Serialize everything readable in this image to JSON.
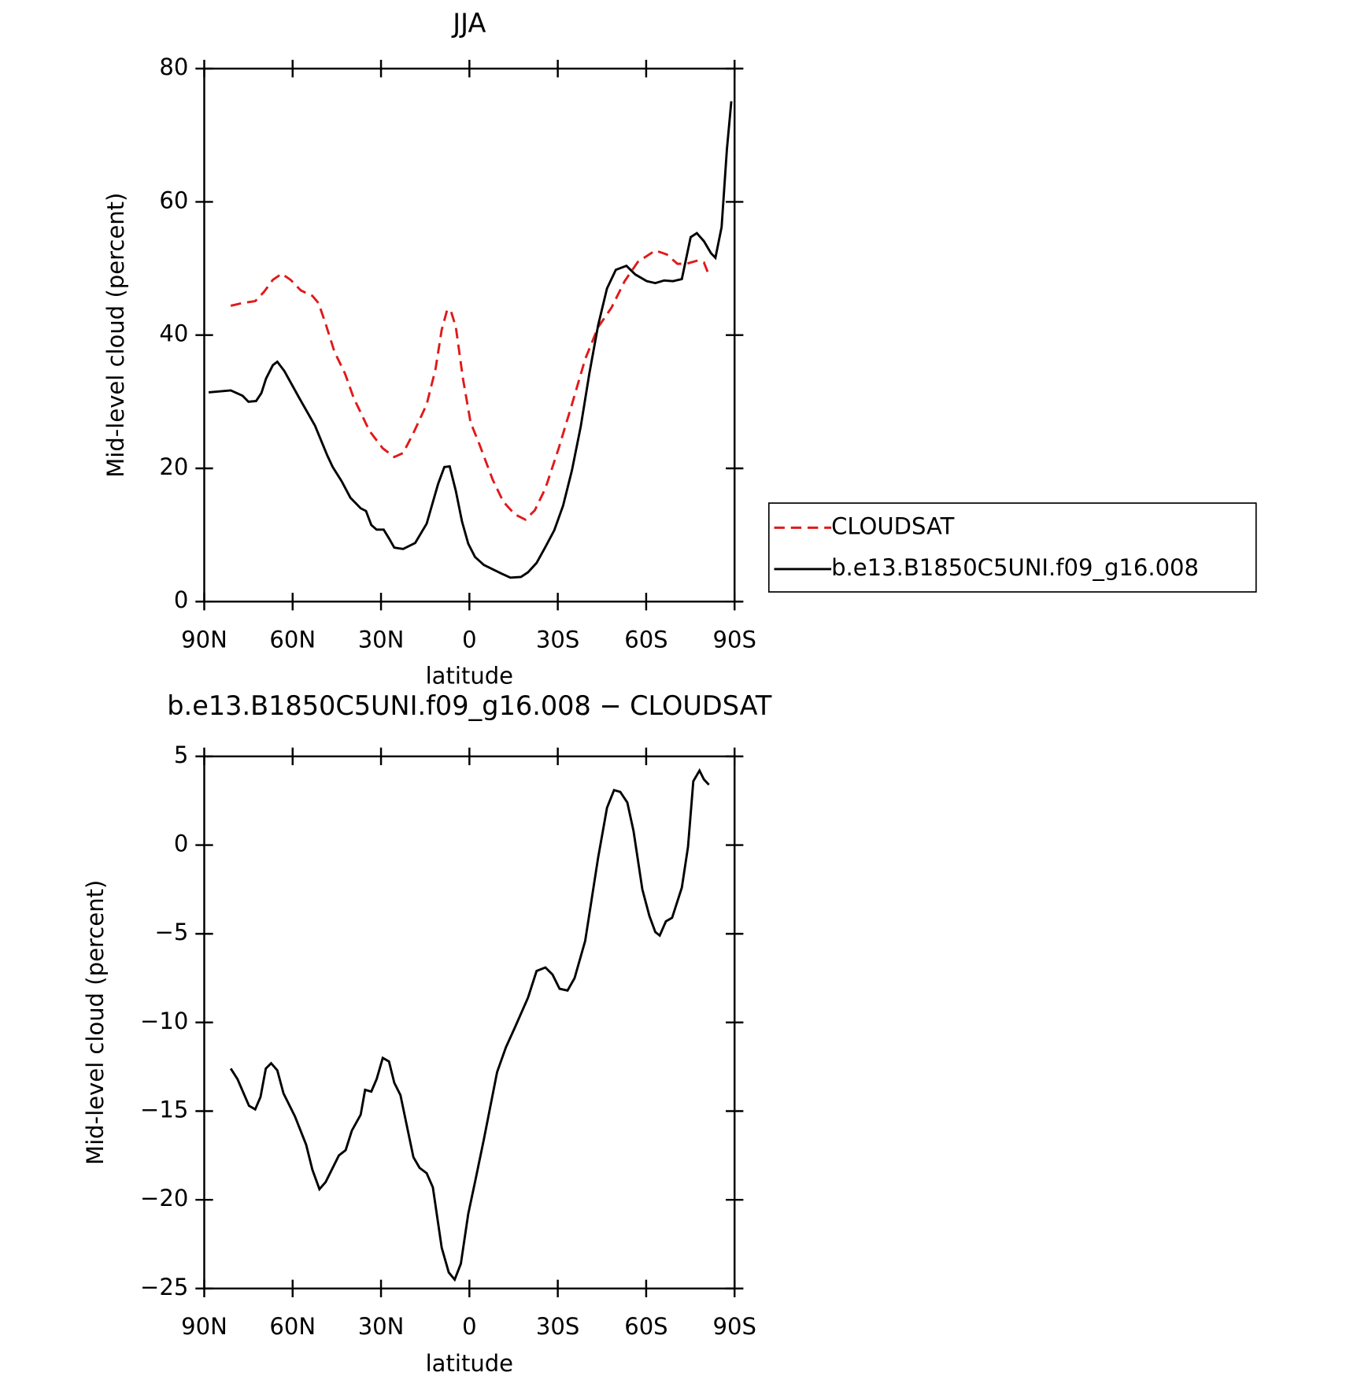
{
  "chart_data": [
    {
      "type": "line",
      "title": "JJA",
      "xlabel": "latitude",
      "ylabel": "Mid-level cloud (percent)",
      "xlim": [
        90,
        -90
      ],
      "xticks": [
        {
          "value": 90,
          "label": "90N"
        },
        {
          "value": 60,
          "label": "60N"
        },
        {
          "value": 30,
          "label": "30N"
        },
        0,
        {
          "value": -30,
          "label": "30S"
        },
        {
          "value": -60,
          "label": "60S"
        },
        {
          "value": -90,
          "label": "90S"
        }
      ],
      "ylim": [
        0,
        80
      ],
      "yticks": [
        0,
        20,
        40,
        60,
        80
      ],
      "legend": "right",
      "series": [
        {
          "name": "CLOUDSAT",
          "color": "#e0191a",
          "linestyle": "dashed",
          "x": [
            81,
            77.2,
            72.7,
            69.7,
            66.7,
            63.7,
            60.7,
            57.2,
            53.3,
            51.2,
            48.8,
            45.8,
            42.2,
            39.3,
            33.9,
            29.4,
            25.5,
            22.5,
            19,
            14.5,
            11.5,
            9.4,
            7.6,
            6.4,
            4.6,
            2.2,
            -0.4,
            -3.4,
            -7.9,
            -11.5,
            -15.4,
            -19,
            -22.2,
            -25.8,
            -30.3,
            -34.8,
            -39.3,
            -43.7,
            -48.2,
            -52.7,
            -57.2,
            -63.1,
            -67,
            -70.6,
            -73.6,
            -77.5,
            -79.6,
            -81.3
          ],
          "values": [
            44.4,
            44.8,
            45.1,
            46.5,
            48.3,
            49.2,
            48.3,
            46.7,
            45.9,
            44.8,
            41.7,
            37.5,
            34.2,
            30.6,
            25.6,
            23,
            21.7,
            22.3,
            25.3,
            29.6,
            34.9,
            40.8,
            43.7,
            43.8,
            41.2,
            33.5,
            26.9,
            23.6,
            18.3,
            15,
            13.1,
            12.3,
            13.7,
            17,
            23,
            29.6,
            36.4,
            41.2,
            44.1,
            48.1,
            51,
            52.7,
            52.1,
            50.7,
            50.7,
            51.2,
            50.9,
            49
          ]
        },
        {
          "name": "b.e13.B1850C5UNI.f09_g16.008",
          "color": "#000000",
          "linestyle": "solid",
          "x": [
            88.5,
            81,
            77,
            75,
            72.4,
            70.6,
            69,
            66.7,
            65.2,
            62.8,
            57.8,
            52.4,
            48.2,
            46.4,
            43.4,
            40.4,
            36.9,
            35.1,
            33.3,
            31.5,
            29.1,
            27.3,
            25.5,
            22.5,
            18.4,
            14.5,
            10.6,
            8.5,
            6.7,
            4.6,
            2.5,
            0.4,
            -1.9,
            -4.9,
            -10.9,
            -13.9,
            -17.5,
            -19.9,
            -22.8,
            -25.8,
            -28.8,
            -31.8,
            -34.8,
            -37.8,
            -40.7,
            -43.7,
            -46.7,
            -49.7,
            -53.3,
            -56.3,
            -60.2,
            -63.1,
            -66.1,
            -69.1,
            -72.1,
            -75.1,
            -77.2,
            -79.6,
            -82,
            -83.5,
            -85.6,
            -87.4,
            -88.9
          ],
          "values": [
            31.4,
            31.7,
            30.9,
            30,
            30.1,
            31.3,
            33.5,
            35.5,
            36,
            34.6,
            30.6,
            26.4,
            21.9,
            20.2,
            18.1,
            15.6,
            14,
            13.6,
            11.5,
            10.8,
            10.8,
            9.5,
            8.1,
            7.9,
            8.8,
            11.7,
            17.7,
            20.2,
            20.3,
            16.6,
            12,
            8.7,
            6.7,
            5.5,
            4.2,
            3.6,
            3.7,
            4.4,
            5.8,
            8.2,
            10.7,
            14.4,
            19.7,
            26.3,
            34.2,
            41.5,
            47,
            49.8,
            50.4,
            49.1,
            48.1,
            47.8,
            48.2,
            48.1,
            48.4,
            54.7,
            55.3,
            54.1,
            52.3,
            51.6,
            56.2,
            67.9,
            75.1
          ]
        }
      ]
    },
    {
      "type": "line",
      "title": "b.e13.B1850C5UNI.f09_g16.008 − CLOUDSAT",
      "xlabel": "latitude",
      "ylabel": "Mid-level cloud (percent)",
      "xlim": [
        90,
        -90
      ],
      "xticks": [
        {
          "value": 90,
          "label": "90N"
        },
        {
          "value": 60,
          "label": "60N"
        },
        {
          "value": 30,
          "label": "30N"
        },
        0,
        {
          "value": -30,
          "label": "30S"
        },
        {
          "value": -60,
          "label": "60S"
        },
        {
          "value": -90,
          "label": "90S"
        }
      ],
      "ylim": [
        -25,
        5
      ],
      "yticks": [
        {
          "value": -25,
          "label": "−25"
        },
        {
          "value": -20,
          "label": "−20"
        },
        {
          "value": -15,
          "label": "−15"
        },
        {
          "value": -10,
          "label": "−10"
        },
        {
          "value": -5,
          "label": "−5"
        },
        0,
        5
      ],
      "series": [
        {
          "color": "#000000",
          "linestyle": "solid",
          "x": [
            81,
            78.7,
            74.8,
            72.7,
            70.9,
            69.1,
            67.3,
            65.2,
            63.1,
            59.2,
            55.4,
            53.3,
            50.9,
            48.8,
            44.3,
            42,
            39.9,
            36.9,
            35.4,
            33.3,
            31.5,
            29.4,
            27.3,
            25.5,
            23.4,
            19,
            16.9,
            14.5,
            12.4,
            9.4,
            7,
            5,
            2.9,
            0.4,
            -1.9,
            -4.9,
            -9.4,
            -12.4,
            -15.4,
            -19.9,
            -22.8,
            -25.8,
            -28.2,
            -30.6,
            -33.3,
            -35.7,
            -39.3,
            -43.7,
            -46.7,
            -49.1,
            -51.2,
            -53.6,
            -55.7,
            -58.7,
            -61.1,
            -63.1,
            -64.6,
            -66.7,
            -68.8,
            -72.1,
            -74.2,
            -76,
            -78.1,
            -79.6,
            -81.3
          ],
          "values": [
            -12.6,
            -13.2,
            -14.7,
            -14.9,
            -14.2,
            -12.6,
            -12.3,
            -12.7,
            -14,
            -15.3,
            -16.9,
            -18.3,
            -19.4,
            -19,
            -17.5,
            -17.2,
            -16.1,
            -15.2,
            -13.8,
            -13.9,
            -13.2,
            -12,
            -12.2,
            -13.4,
            -14.1,
            -17.6,
            -18.2,
            -18.5,
            -19.3,
            -22.7,
            -24.1,
            -24.5,
            -23.6,
            -20.8,
            -19,
            -16.6,
            -12.8,
            -11.4,
            -10.3,
            -8.6,
            -7.1,
            -6.9,
            -7.3,
            -8.1,
            -8.2,
            -7.5,
            -5.4,
            -0.7,
            2.1,
            3.1,
            3,
            2.4,
            0.8,
            -2.5,
            -4,
            -4.9,
            -5.1,
            -4.3,
            -4.1,
            -2.4,
            -0.1,
            3.6,
            4.2,
            3.7,
            3.4
          ]
        }
      ]
    }
  ]
}
